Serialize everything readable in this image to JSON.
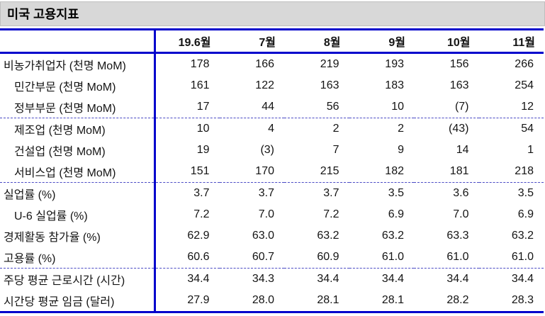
{
  "title": "미국 고용지표",
  "colors": {
    "accent_blue": "#0000cc",
    "divider_blue": "#4a4ac4",
    "title_bg": "#d8d8d8"
  },
  "table": {
    "columns": [
      "19.6월",
      "7월",
      "8월",
      "9월",
      "10월",
      "11월"
    ],
    "rows": [
      {
        "label": "비농가취업자 (천명 MoM)",
        "indent": false,
        "divider": false,
        "values": [
          "178",
          "166",
          "219",
          "193",
          "156",
          "266"
        ]
      },
      {
        "label": "민간부문 (천명 MoM)",
        "indent": true,
        "divider": false,
        "values": [
          "161",
          "122",
          "163",
          "183",
          "163",
          "254"
        ]
      },
      {
        "label": "정부부문 (천명 MoM)",
        "indent": true,
        "divider": true,
        "values": [
          "17",
          "44",
          "56",
          "10",
          "(7)",
          "12"
        ]
      },
      {
        "label": "제조업 (천명 MoM)",
        "indent": true,
        "divider": false,
        "values": [
          "10",
          "4",
          "2",
          "2",
          "(43)",
          "54"
        ]
      },
      {
        "label": "건설업 (천명 MoM)",
        "indent": true,
        "divider": false,
        "values": [
          "19",
          "(3)",
          "7",
          "9",
          "14",
          "1"
        ]
      },
      {
        "label": "서비스업 (천명 MoM)",
        "indent": true,
        "divider": true,
        "values": [
          "151",
          "170",
          "215",
          "182",
          "181",
          "218"
        ]
      },
      {
        "label": "실업률 (%)",
        "indent": false,
        "divider": false,
        "values": [
          "3.7",
          "3.7",
          "3.7",
          "3.5",
          "3.6",
          "3.5"
        ]
      },
      {
        "label": "U-6 실업률 (%)",
        "indent": true,
        "divider": false,
        "values": [
          "7.2",
          "7.0",
          "7.2",
          "6.9",
          "7.0",
          "6.9"
        ]
      },
      {
        "label": "경제활동 참가율 (%)",
        "indent": false,
        "divider": false,
        "values": [
          "62.9",
          "63.0",
          "63.2",
          "63.2",
          "63.3",
          "63.2"
        ]
      },
      {
        "label": "고용률 (%)",
        "indent": false,
        "divider": true,
        "values": [
          "60.6",
          "60.7",
          "60.9",
          "61.0",
          "61.0",
          "61.0"
        ]
      },
      {
        "label": "주당 평균 근로시간 (시간)",
        "indent": false,
        "divider": false,
        "values": [
          "34.4",
          "34.3",
          "34.4",
          "34.4",
          "34.4",
          "34.4"
        ]
      },
      {
        "label": "시간당 평균 임금 (달러)",
        "indent": false,
        "divider": false,
        "values": [
          "27.9",
          "28.0",
          "28.1",
          "28.1",
          "28.2",
          "28.3"
        ]
      }
    ]
  },
  "chart_data": {
    "type": "table",
    "title": "미국 고용지표",
    "categories": [
      "19.6월",
      "7월",
      "8월",
      "9월",
      "10월",
      "11월"
    ],
    "series": [
      {
        "name": "비농가취업자 (천명 MoM)",
        "values": [
          178,
          166,
          219,
          193,
          156,
          266
        ]
      },
      {
        "name": "민간부문 (천명 MoM)",
        "values": [
          161,
          122,
          163,
          183,
          163,
          254
        ]
      },
      {
        "name": "정부부문 (천명 MoM)",
        "values": [
          17,
          44,
          56,
          10,
          -7,
          12
        ]
      },
      {
        "name": "제조업 (천명 MoM)",
        "values": [
          10,
          4,
          2,
          2,
          -43,
          54
        ]
      },
      {
        "name": "건설업 (천명 MoM)",
        "values": [
          19,
          -3,
          7,
          9,
          14,
          1
        ]
      },
      {
        "name": "서비스업 (천명 MoM)",
        "values": [
          151,
          170,
          215,
          182,
          181,
          218
        ]
      },
      {
        "name": "실업률 (%)",
        "values": [
          3.7,
          3.7,
          3.7,
          3.5,
          3.6,
          3.5
        ]
      },
      {
        "name": "U-6 실업률 (%)",
        "values": [
          7.2,
          7.0,
          7.2,
          6.9,
          7.0,
          6.9
        ]
      },
      {
        "name": "경제활동 참가율 (%)",
        "values": [
          62.9,
          63.0,
          63.2,
          63.2,
          63.3,
          63.2
        ]
      },
      {
        "name": "고용률 (%)",
        "values": [
          60.6,
          60.7,
          60.9,
          61.0,
          61.0,
          61.0
        ]
      },
      {
        "name": "주당 평균 근로시간 (시간)",
        "values": [
          34.4,
          34.3,
          34.4,
          34.4,
          34.4,
          34.4
        ]
      },
      {
        "name": "시간당 평균 임금 (달러)",
        "values": [
          27.9,
          28.0,
          28.1,
          28.1,
          28.2,
          28.3
        ]
      }
    ]
  }
}
